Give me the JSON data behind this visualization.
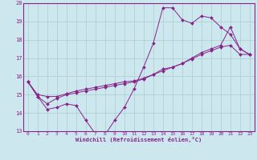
{
  "xlabel": "Windchill (Refroidissement éolien,°C)",
  "bg_color": "#cce8ee",
  "line_color": "#882288",
  "xlim": [
    -0.5,
    23.5
  ],
  "ylim": [
    13,
    20
  ],
  "xticks": [
    0,
    1,
    2,
    3,
    4,
    5,
    6,
    7,
    8,
    9,
    10,
    11,
    12,
    13,
    14,
    15,
    16,
    17,
    18,
    19,
    20,
    21,
    22,
    23
  ],
  "yticks": [
    13,
    14,
    15,
    16,
    17,
    18,
    19,
    20
  ],
  "grid_color": "#aacccc",
  "series1_x": [
    0,
    1,
    2,
    3,
    4,
    5,
    6,
    7,
    8,
    9,
    10,
    11,
    12,
    13,
    14,
    15,
    16,
    17,
    18,
    19,
    20,
    21,
    22,
    23
  ],
  "series1_y": [
    15.7,
    14.9,
    14.2,
    14.3,
    14.5,
    14.4,
    13.6,
    12.85,
    12.8,
    13.6,
    14.3,
    15.3,
    16.5,
    17.8,
    19.75,
    19.75,
    19.1,
    18.9,
    19.3,
    19.2,
    18.7,
    18.3,
    17.5,
    17.2
  ],
  "series2_x": [
    0,
    1,
    2,
    3,
    4,
    5,
    6,
    7,
    8,
    9,
    10,
    11,
    12,
    13,
    14,
    15,
    16,
    17,
    18,
    19,
    20,
    21,
    22,
    23
  ],
  "series2_y": [
    15.7,
    14.9,
    14.5,
    14.8,
    15.0,
    15.1,
    15.2,
    15.3,
    15.4,
    15.5,
    15.6,
    15.7,
    15.85,
    16.1,
    16.4,
    16.5,
    16.7,
    17.0,
    17.3,
    17.5,
    17.7,
    18.7,
    17.5,
    17.2
  ],
  "series3_x": [
    0,
    1,
    2,
    3,
    4,
    5,
    6,
    7,
    8,
    9,
    10,
    11,
    12,
    13,
    14,
    15,
    16,
    17,
    18,
    19,
    20,
    21,
    22,
    23
  ],
  "series3_y": [
    15.7,
    15.0,
    14.9,
    14.9,
    15.05,
    15.2,
    15.3,
    15.4,
    15.5,
    15.6,
    15.7,
    15.75,
    15.9,
    16.1,
    16.3,
    16.5,
    16.7,
    16.95,
    17.2,
    17.4,
    17.6,
    17.7,
    17.2,
    17.2
  ]
}
